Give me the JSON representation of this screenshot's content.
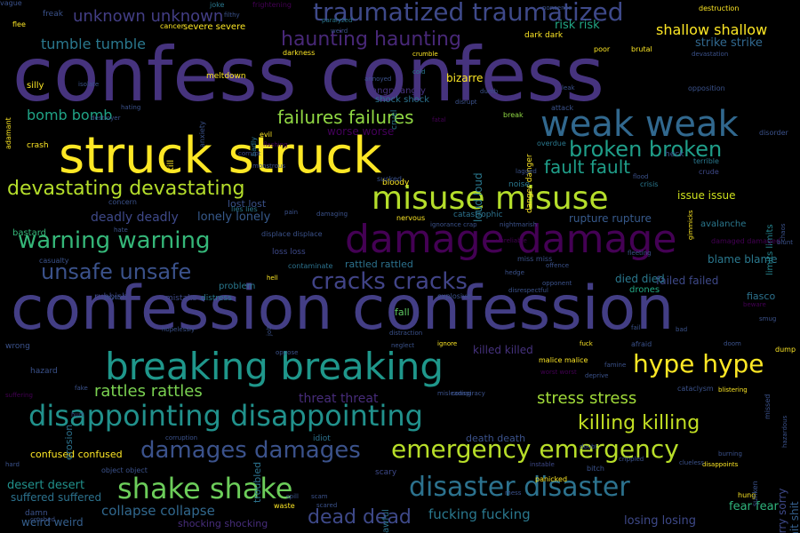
{
  "words": [
    {
      "text": "confess confess",
      "color": "#46337e"
    },
    {
      "text": "confession confession",
      "color": "#433e85"
    },
    {
      "text": "struck struck",
      "color": "#fde725"
    },
    {
      "text": "damage damage",
      "color": "#440154"
    },
    {
      "text": "breaking breaking",
      "color": "#1f978b"
    },
    {
      "text": "weak weak",
      "color": "#31688e"
    },
    {
      "text": "misuse misuse",
      "color": "#b5de2b"
    },
    {
      "text": "disappointing disappointing",
      "color": "#21918c"
    },
    {
      "text": "traumatized traumatized",
      "color": "#3e4989"
    },
    {
      "text": "disaster disaster",
      "color": "#2c728e"
    },
    {
      "text": "shake shake",
      "color": "#6ccd5a"
    },
    {
      "text": "emergency emergency",
      "color": "#b8de29"
    },
    {
      "text": "hype hype",
      "color": "#fde725"
    },
    {
      "text": "devastating devastating",
      "color": "#b5de2b"
    },
    {
      "text": "warning warning",
      "color": "#35b779"
    },
    {
      "text": "damages damages",
      "color": "#3b528b"
    },
    {
      "text": "cracks cracks",
      "color": "#414487"
    },
    {
      "text": "unsafe unsafe",
      "color": "#3b528b"
    },
    {
      "text": "haunting haunting",
      "color": "#482878"
    },
    {
      "text": "broken broken",
      "color": "#1f9e89"
    },
    {
      "text": "killing killing",
      "color": "#c2df23"
    },
    {
      "text": "failures failures",
      "color": "#90d743"
    },
    {
      "text": "fault fault",
      "color": "#1f9e89"
    },
    {
      "text": "stress stress",
      "color": "#a0da39"
    },
    {
      "text": "rattles rattles",
      "color": "#7ad151"
    },
    {
      "text": "dead dead",
      "color": "#3e4989"
    },
    {
      "text": "tumble tumble",
      "color": "#2a788e"
    },
    {
      "text": "bomb bomb",
      "color": "#20a386"
    },
    {
      "text": "collapse collapse",
      "color": "#31688e"
    },
    {
      "text": "fucking fucking",
      "color": "#2a788e"
    },
    {
      "text": "unknown unknown",
      "color": "#433e85"
    },
    {
      "text": "shallow shallow",
      "color": "#fde725"
    },
    {
      "text": "deadly deadly",
      "color": "#3e4989"
    },
    {
      "text": "lonely lonely",
      "color": "#375a8c"
    },
    {
      "text": "threat threat",
      "color": "#472c7a"
    },
    {
      "text": "losing losing",
      "color": "#3e4989"
    },
    {
      "text": "fear fear",
      "color": "#2fb47c"
    },
    {
      "text": "desert desert",
      "color": "#21918c"
    },
    {
      "text": "suffered suffered",
      "color": "#2c728e"
    },
    {
      "text": "weird weird",
      "color": "#355f8d"
    },
    {
      "text": "confused confused",
      "color": "#fde725"
    },
    {
      "text": "rupture rupture",
      "color": "#375a8c"
    },
    {
      "text": "issue issue",
      "color": "#cde11d"
    },
    {
      "text": "blame blame",
      "color": "#2a788e"
    },
    {
      "text": "failed failed",
      "color": "#3e4989"
    },
    {
      "text": "died died",
      "color": "#2a788e"
    },
    {
      "text": "risk risk",
      "color": "#22a785"
    },
    {
      "text": "strike strike",
      "color": "#31688e"
    },
    {
      "text": "sorry sorry",
      "color": "#3e4989"
    },
    {
      "text": "shit shit",
      "color": "#355f8d"
    },
    {
      "text": "shocking shocking",
      "color": "#472d7b"
    },
    {
      "text": "killed killed",
      "color": "#46327e"
    },
    {
      "text": "loud loud",
      "color": "#2a788e"
    },
    {
      "text": "lost lost",
      "color": "#3b528b"
    },
    {
      "text": "rattled rattled",
      "color": "#2c728e"
    },
    {
      "text": "worse worse",
      "color": "#44015a"
    },
    {
      "text": "avalanche",
      "color": "#2a788e"
    },
    {
      "text": "fiasco",
      "color": "#2c728e"
    },
    {
      "text": "drones",
      "color": "#22a884"
    },
    {
      "text": "limits limits",
      "color": "#25848e"
    },
    {
      "text": "death death",
      "color": "#3b528b"
    },
    {
      "text": "bizarre",
      "color": "#fde725"
    },
    {
      "text": "fall",
      "color": "#5ec962"
    },
    {
      "text": "problem",
      "color": "#2a788e"
    },
    {
      "text": "distress",
      "color": "#2a788e"
    },
    {
      "text": "mistake",
      "color": "#3e4989"
    },
    {
      "text": "rubbish",
      "color": "#3e4989"
    },
    {
      "text": "bastard",
      "color": "#35b779"
    },
    {
      "text": "hazard",
      "color": "#3b528b"
    },
    {
      "text": "erosion",
      "color": "#2c728e"
    },
    {
      "text": "crash",
      "color": "#fde725"
    },
    {
      "text": "silly",
      "color": "#fde725"
    },
    {
      "text": "freak",
      "color": "#3b528b"
    },
    {
      "text": "joke",
      "color": "#2a788e"
    },
    {
      "text": "meltdown",
      "color": "#fde725"
    },
    {
      "text": "cancer",
      "color": "#fde725"
    },
    {
      "text": "severe severe",
      "color": "#fde725"
    },
    {
      "text": "dark dark",
      "color": "#fde725"
    },
    {
      "text": "poor",
      "color": "#fde725"
    },
    {
      "text": "brutal",
      "color": "#fde725"
    },
    {
      "text": "destruction",
      "color": "#fde725"
    },
    {
      "text": "darkness",
      "color": "#fde725"
    },
    {
      "text": "crumble",
      "color": "#fde725"
    },
    {
      "text": "cruel",
      "color": "#2a788e"
    },
    {
      "text": "angry angry",
      "color": "#46337e"
    },
    {
      "text": "shock shock",
      "color": "#2c728e"
    },
    {
      "text": "attack",
      "color": "#3b528b"
    },
    {
      "text": "break",
      "color": "#90d743"
    },
    {
      "text": "danger danger",
      "color": "#fde725"
    },
    {
      "text": "overdue",
      "color": "#2a788e"
    },
    {
      "text": "heck",
      "color": "#3b528b"
    },
    {
      "text": "crude",
      "color": "#3e4989"
    },
    {
      "text": "terrible",
      "color": "#2a788e"
    },
    {
      "text": "disorder",
      "color": "#3b528b"
    },
    {
      "text": "crisis",
      "color": "#2a788e"
    },
    {
      "text": "noise",
      "color": "#2a788e"
    },
    {
      "text": "nervous",
      "color": "#fde725"
    },
    {
      "text": "bloody",
      "color": "#fde725"
    },
    {
      "text": "kill",
      "color": "#fde725"
    },
    {
      "text": "evil",
      "color": "#fde725"
    },
    {
      "text": "corrupt",
      "color": "#3e4989"
    },
    {
      "text": "concern",
      "color": "#3b528b"
    },
    {
      "text": "lies lies",
      "color": "#2a788e"
    },
    {
      "text": "loss loss",
      "color": "#3e4989"
    },
    {
      "text": "contaminate",
      "color": "#2c728e"
    },
    {
      "text": "displace displace",
      "color": "#3b528b"
    },
    {
      "text": "miss miss",
      "color": "#3b528b"
    },
    {
      "text": "malice malice",
      "color": "#fde725"
    },
    {
      "text": "worst worst",
      "color": "#440154"
    },
    {
      "text": "damaged damaged",
      "color": "#440154"
    },
    {
      "text": "catastrophic",
      "color": "#2c728e"
    },
    {
      "text": "scary",
      "color": "#3e4989"
    },
    {
      "text": "bitch",
      "color": "#3b528b"
    },
    {
      "text": "panicked",
      "color": "#fde725"
    },
    {
      "text": "instable",
      "color": "#3e4989"
    },
    {
      "text": "idiot",
      "color": "#2c728e"
    },
    {
      "text": "hung",
      "color": "#fde725"
    },
    {
      "text": "waste",
      "color": "#fde725"
    },
    {
      "text": "object object",
      "color": "#3b528b"
    },
    {
      "text": "wrong",
      "color": "#3b528b"
    },
    {
      "text": "adamant",
      "color": "#fde725"
    },
    {
      "text": "hating",
      "color": "#3b528b"
    },
    {
      "text": "destroyer",
      "color": "#3b528b"
    },
    {
      "text": "flee",
      "color": "#fde725"
    },
    {
      "text": "hard",
      "color": "#3b528b"
    },
    {
      "text": "damn",
      "color": "#3b528b"
    },
    {
      "text": "crushed",
      "color": "#3b528b"
    },
    {
      "text": "fuck",
      "color": "#fde725"
    },
    {
      "text": "awful",
      "color": "#2c728e"
    },
    {
      "text": "troubled",
      "color": "#2c728e"
    },
    {
      "text": "badly",
      "color": "#2c728e"
    },
    {
      "text": "anxiety",
      "color": "#3b528b"
    },
    {
      "text": "ignore",
      "color": "#fde725"
    },
    {
      "text": "explosive",
      "color": "#3b528b"
    },
    {
      "text": "cataclysm",
      "color": "#3b528b"
    },
    {
      "text": "afraid",
      "color": "#3b528b"
    },
    {
      "text": "oppose",
      "color": "#3b528b"
    },
    {
      "text": "opposition",
      "color": "#3b528b"
    },
    {
      "text": "devastation",
      "color": "#3b528b"
    },
    {
      "text": "frightening",
      "color": "#440154"
    },
    {
      "text": "hell",
      "color": "#fde725"
    },
    {
      "text": "fake",
      "color": "#3b528b"
    },
    {
      "text": "hurt",
      "color": "#3b528b"
    },
    {
      "text": "disappoints",
      "color": "#fde725"
    },
    {
      "text": "clueless",
      "color": "#3b528b"
    },
    {
      "text": "sunken",
      "color": "#3b528b"
    },
    {
      "text": "burning",
      "color": "#3b528b"
    },
    {
      "text": "hazardous",
      "color": "#3b528b"
    },
    {
      "text": "chaos",
      "color": "#3b528b"
    },
    {
      "text": "blunt",
      "color": "#3b528b"
    },
    {
      "text": "blistering",
      "color": "#fde725"
    },
    {
      "text": "dump",
      "color": "#fde725"
    },
    {
      "text": "fail",
      "color": "#3b528b"
    },
    {
      "text": "missed",
      "color": "#3b528b"
    },
    {
      "text": "lagged",
      "color": "#3b528b"
    },
    {
      "text": "sucked",
      "color": "#3b528b"
    },
    {
      "text": "hedge",
      "color": "#3b528b"
    },
    {
      "text": "annoyed",
      "color": "#3b528b"
    },
    {
      "text": "cold",
      "color": "#2a788e"
    },
    {
      "text": "deprive",
      "color": "#3b528b"
    },
    {
      "text": "famine",
      "color": "#3b528b"
    },
    {
      "text": "gimmicks",
      "color": "#fde725"
    },
    {
      "text": "monstrous",
      "color": "#3b528b"
    },
    {
      "text": "isolate",
      "color": "#3b528b"
    },
    {
      "text": "myth",
      "color": "#3b528b"
    },
    {
      "text": "jolt",
      "color": "#3b528b"
    },
    {
      "text": "opponent",
      "color": "#3b528b"
    },
    {
      "text": "offence",
      "color": "#3b528b"
    },
    {
      "text": "disrespectful",
      "color": "#3b528b"
    },
    {
      "text": "misleading",
      "color": "#3b528b"
    },
    {
      "text": "distraction",
      "color": "#3b528b"
    },
    {
      "text": "neglect",
      "color": "#3b528b"
    },
    {
      "text": "conspiracy",
      "color": "#3b528b"
    },
    {
      "text": "corruption",
      "color": "#3b528b"
    },
    {
      "text": "hopelessly",
      "color": "#3b528b"
    },
    {
      "text": "casualty",
      "color": "#3b528b"
    },
    {
      "text": "suffering",
      "color": "#440154"
    },
    {
      "text": "damaging",
      "color": "#3b528b"
    },
    {
      "text": "ignorance crap",
      "color": "#3b528b"
    },
    {
      "text": "nightmarish",
      "color": "#3b528b"
    },
    {
      "text": "unreliable",
      "color": "#440154"
    },
    {
      "text": "hate",
      "color": "#3b528b"
    },
    {
      "text": "filthy",
      "color": "#3b528b"
    },
    {
      "text": "flashing",
      "color": "#440154"
    },
    {
      "text": "pain",
      "color": "#3b528b"
    },
    {
      "text": "spill",
      "color": "#3b528b"
    },
    {
      "text": "scam",
      "color": "#3b528b"
    },
    {
      "text": "weird",
      "color": "#3b528b"
    },
    {
      "text": "paralyzed",
      "color": "#2a788e"
    },
    {
      "text": "nonsense",
      "color": "#3b528b"
    },
    {
      "text": "flood",
      "color": "#3b528b"
    },
    {
      "text": "fleeting",
      "color": "#3b528b"
    },
    {
      "text": "beware",
      "color": "#440154"
    },
    {
      "text": "smug",
      "color": "#3b528b"
    },
    {
      "text": "scared",
      "color": "#3b528b"
    },
    {
      "text": "fatal",
      "color": "#440154"
    },
    {
      "text": "disrupt",
      "color": "#3b528b"
    },
    {
      "text": "dumb",
      "color": "#3b528b"
    },
    {
      "text": "leak",
      "color": "#3b528b"
    },
    {
      "text": "bad",
      "color": "#3b528b"
    },
    {
      "text": "doom",
      "color": "#3b528b"
    },
    {
      "text": "doubt",
      "color": "#3b528b"
    },
    {
      "text": "crippled",
      "color": "#3b528b"
    },
    {
      "text": "mess",
      "color": "#3b528b"
    },
    {
      "text": "vague",
      "color": "#3b528b"
    }
  ]
}
